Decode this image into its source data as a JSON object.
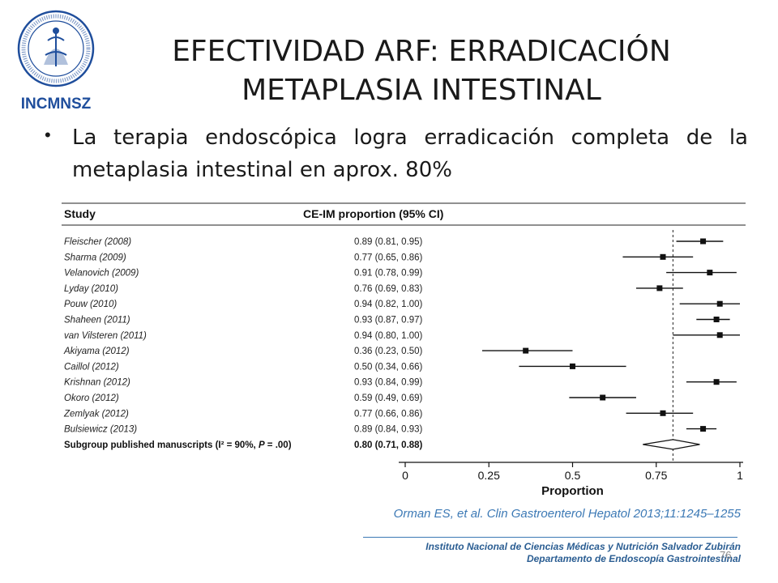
{
  "slide": {
    "title_line1": "EFECTIVIDAD ARF: ERRADICACIÓN",
    "title_line2": "METAPLASIA INTESTINAL",
    "bullet": "La terapia endoscópica logra erradicación completa de la metaplasia intestinal en aprox. 80%",
    "citation": "Orman ES, et al. Clin Gastroenterol Hepatol 2013;11:1245–1255",
    "footer_line1": "Instituto Nacional de Ciencias Médicas y Nutrición Salvador Zubirán",
    "footer_line2": "Departamento de Endoscopía Gastrointestinal",
    "slide_number": "76",
    "logo_text": "INCMNSZ",
    "colors": {
      "accent": "#3c79b5",
      "footer": "#2a5d92",
      "logo_blue": "#1f4e9c"
    }
  },
  "chart_data": {
    "type": "forest",
    "header_study": "Study",
    "header_ci": "CE-IM proportion (95% CI)",
    "studies": [
      {
        "label": "Fleischer (2008)",
        "ci_text": "0.89 (0.81, 0.95)",
        "est": 0.89,
        "lo": 0.81,
        "hi": 0.95
      },
      {
        "label": "Sharma (2009)",
        "ci_text": "0.77 (0.65, 0.86)",
        "est": 0.77,
        "lo": 0.65,
        "hi": 0.86
      },
      {
        "label": "Velanovich (2009)",
        "ci_text": "0.91 (0.78, 0.99)",
        "est": 0.91,
        "lo": 0.78,
        "hi": 0.99
      },
      {
        "label": "Lyday (2010)",
        "ci_text": "0.76 (0.69, 0.83)",
        "est": 0.76,
        "lo": 0.69,
        "hi": 0.83
      },
      {
        "label": "Pouw (2010)",
        "ci_text": "0.94 (0.82, 1.00)",
        "est": 0.94,
        "lo": 0.82,
        "hi": 1.0
      },
      {
        "label": "Shaheen (2011)",
        "ci_text": "0.93 (0.87, 0.97)",
        "est": 0.93,
        "lo": 0.87,
        "hi": 0.97
      },
      {
        "label": "van Vilsteren (2011)",
        "ci_text": "0.94 (0.80, 1.00)",
        "est": 0.94,
        "lo": 0.8,
        "hi": 1.0
      },
      {
        "label": "Akiyama (2012)",
        "ci_text": "0.36 (0.23, 0.50)",
        "est": 0.36,
        "lo": 0.23,
        "hi": 0.5
      },
      {
        "label": "Caillol (2012)",
        "ci_text": "0.50 (0.34, 0.66)",
        "est": 0.5,
        "lo": 0.34,
        "hi": 0.66
      },
      {
        "label": "Krishnan (2012)",
        "ci_text": "0.93 (0.84, 0.99)",
        "est": 0.93,
        "lo": 0.84,
        "hi": 0.99
      },
      {
        "label": "Okoro (2012)",
        "ci_text": "0.59 (0.49, 0.69)",
        "est": 0.59,
        "lo": 0.49,
        "hi": 0.69
      },
      {
        "label": "Zemlyak (2012)",
        "ci_text": "0.77 (0.66, 0.86)",
        "est": 0.77,
        "lo": 0.66,
        "hi": 0.86
      },
      {
        "label": "Bulsiewicz (2013)",
        "ci_text": "0.89 (0.84, 0.93)",
        "est": 0.89,
        "lo": 0.84,
        "hi": 0.93
      }
    ],
    "summary": {
      "label_pre": "Subgroup published manuscripts (I² = 90%, ",
      "label_p": "P",
      "label_post": " = .00)",
      "ci_text": "0.80 (0.71, 0.88)",
      "est": 0.8,
      "lo": 0.71,
      "hi": 0.88
    },
    "x_ticks": [
      0,
      0.25,
      0.5,
      0.75,
      1
    ],
    "x_tick_labels": [
      "0",
      "0.25",
      "0.5",
      "0.75",
      "1"
    ],
    "xlim": [
      0,
      1
    ],
    "xlabel": "Proportion",
    "reference_line": 0.8
  }
}
